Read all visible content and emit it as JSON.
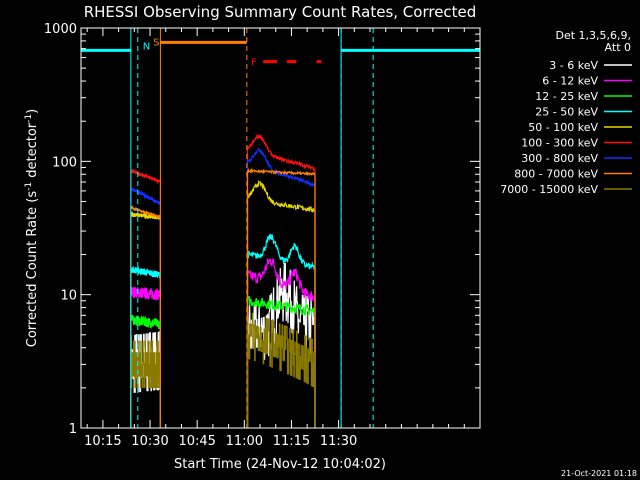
{
  "chart_data": {
    "type": "line",
    "title": "RHESSI Observing Summary Count Rates, Corrected",
    "xlabel": "Start Time (24-Nov-12 10:04:02)",
    "ylabel_main": "Corrected Count Rate (s",
    "ylabel_sup1": "-1",
    "ylabel_mid": " detector",
    "ylabel_sup2": "-1",
    "ylabel_end": ")",
    "yscale": "log",
    "ylim": [
      1,
      1000
    ],
    "xlim_min": [
      4.03,
      131
    ],
    "x_ticks": [
      {
        "min": 11,
        "label": "10:15"
      },
      {
        "min": 26,
        "label": "10:30"
      },
      {
        "min": 41,
        "label": "10:45"
      },
      {
        "min": 56,
        "label": "11:00"
      },
      {
        "min": 71,
        "label": "11:15"
      },
      {
        "min": 86,
        "label": "11:30"
      }
    ],
    "y_ticks": [
      {
        "value": 1,
        "label": "1"
      },
      {
        "value": 10,
        "label": "10"
      },
      {
        "value": 100,
        "label": "100"
      },
      {
        "value": 1000,
        "label": "1000"
      }
    ],
    "legend": {
      "header1": "Det 1,3,5,6,9,",
      "header2": "Att 0",
      "placement": "right"
    },
    "series": [
      {
        "name": "3 - 6 keV",
        "color": "#ffffff",
        "seg1": [
          3.0,
          3.2
        ],
        "seg2": [
          5.0,
          6.0
        ],
        "seg2_shape": "bump",
        "noise": 0.25
      },
      {
        "name": "6 - 12 keV",
        "color": "#ff00ff",
        "seg1": [
          10.5,
          10.0
        ],
        "seg2": [
          14.0,
          9.5
        ],
        "seg2_shape": "bump2",
        "noise": 0.1
      },
      {
        "name": "12 - 25 keV",
        "color": "#00ff00",
        "seg1": [
          6.5,
          6.0
        ],
        "seg2": [
          9.0,
          7.5
        ],
        "seg2_shape": "flat",
        "noise": 0.09
      },
      {
        "name": "25 - 50 keV",
        "color": "#00ffff",
        "seg1": [
          15.5,
          14.0
        ],
        "seg2": [
          20.0,
          16.0
        ],
        "seg2_shape": "bump2",
        "noise": 0.06
      },
      {
        "name": "50 - 100 keV",
        "color": "#e8d800",
        "seg1": [
          40.0,
          38.0
        ],
        "seg2": [
          52.0,
          43.0
        ],
        "seg2_shape": "peak",
        "noise": 0.04
      },
      {
        "name": "100 - 300 keV",
        "color": "#ff1010",
        "seg1": [
          85.0,
          70.0
        ],
        "seg2": [
          120.0,
          88.0
        ],
        "seg2_shape": "peak",
        "noise": 0.03
      },
      {
        "name": "300 - 800 keV",
        "color": "#1030ff",
        "seg1": [
          62.0,
          48.0
        ],
        "seg2": [
          95.0,
          66.0
        ],
        "seg2_shape": "peak",
        "noise": 0.03
      },
      {
        "name": "800 - 7000 keV",
        "color": "#ff8000",
        "seg1": [
          45.0,
          38.0
        ],
        "seg2": [
          85.0,
          80.0
        ],
        "seg2_shape": "flat",
        "noise": 0.02
      },
      {
        "name": "7000 - 15000 keV",
        "color": "#8a7a00",
        "seg1": [
          3.0,
          3.0
        ],
        "seg2": [
          5.0,
          3.0
        ],
        "seg2_shape": "steps",
        "noise": 0.2
      }
    ],
    "data_intervals_min": [
      [
        19.9,
        29.3
      ],
      [
        57.0,
        78.5
      ]
    ],
    "flags": {
      "saa_label": "S",
      "saa_level": 780,
      "saa_min": [
        29.3,
        56.8
      ],
      "saa_dash_min": [
        27.0,
        56.8
      ],
      "saa_color": "#ff8000",
      "night_label": "N",
      "night_level": 680,
      "night_min": [
        [
          4.03,
          19.9
        ],
        [
          86.8,
          131
        ]
      ],
      "night_dash_min": [
        [
          22.1,
          86.8
        ],
        [
          97.0,
          131
        ]
      ],
      "night_color": "#00ffff",
      "flare_label": "F",
      "flare_level": 560,
      "flare_min": [
        [
          62.0,
          66.5
        ],
        [
          69.5,
          72.5
        ],
        [
          79.0,
          80.5
        ]
      ],
      "flare_color": "#ff0000"
    },
    "grid": false
  },
  "footer": {
    "timestamp": "21-Oct-2021 01:18"
  }
}
